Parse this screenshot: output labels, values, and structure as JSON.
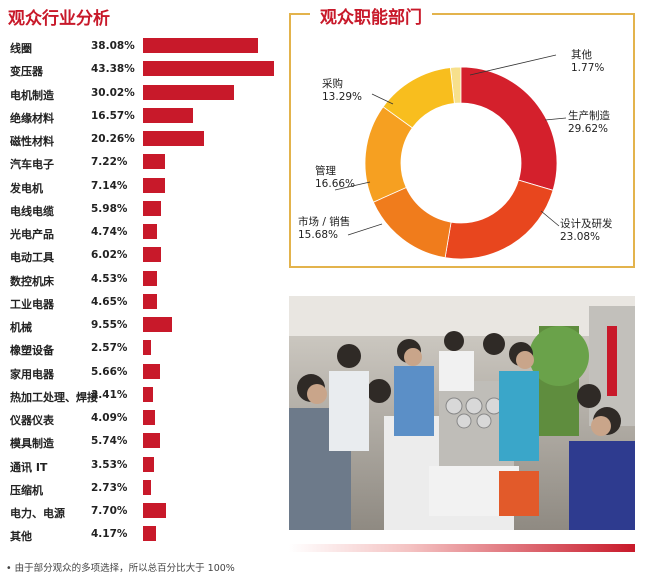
{
  "chart_data": [
    {
      "type": "bar",
      "orientation": "horizontal",
      "title": "观众行业分析",
      "categories": [
        "线圈",
        "变压器",
        "电机制造",
        "绝缘材料",
        "磁性材料",
        "汽车电子",
        "发电机",
        "电线电缆",
        "光电产品",
        "电动工具",
        "数控机床",
        "工业电器",
        "机械",
        "橡塑设备",
        "家用电器",
        "热加工处理、焊接",
        "仪器仪表",
        "模具制造",
        "通讯 IT",
        "压缩机",
        "电力、电源",
        "其他"
      ],
      "values": [
        38.08,
        43.38,
        30.02,
        16.57,
        20.26,
        7.22,
        7.14,
        5.98,
        4.74,
        6.02,
        4.53,
        4.65,
        9.55,
        2.57,
        5.66,
        3.41,
        4.09,
        5.74,
        3.53,
        2.73,
        7.7,
        4.17
      ],
      "value_labels": [
        "38.08%",
        "43.38%",
        "30.02%",
        "16.57%",
        "20.26%",
        "7.22%",
        "7.14%",
        "5.98%",
        "4.74%",
        "6.02%",
        "4.53%",
        "4.65%",
        "9.55%",
        "2.57%",
        "5.66%",
        "3.41%",
        "4.09%",
        "5.74%",
        "3.53%",
        "2.73%",
        "7.70%",
        "4.17%"
      ],
      "color": "#c8192a"
    },
    {
      "type": "pie",
      "style": "donut",
      "title": "观众职能部门",
      "slices": [
        {
          "label": "其他",
          "value": 1.77,
          "value_label": "1.77%",
          "color": "#f7e08c"
        },
        {
          "label": "生产制造",
          "value": 29.62,
          "value_label": "29.62%",
          "color": "#d4202c"
        },
        {
          "label": "设计及研发",
          "value": 23.08,
          "value_label": "23.08%",
          "color": "#e8461e"
        },
        {
          "label": "市场 / 销售",
          "value": 15.68,
          "value_label": "15.68%",
          "color": "#f07c1c"
        },
        {
          "label": "管理",
          "value": 16.66,
          "value_label": "16.66%",
          "color": "#f6a021"
        },
        {
          "label": "采购",
          "value": 13.29,
          "value_label": "13.29%",
          "color": "#f8be1e"
        }
      ]
    }
  ],
  "footnote": "• 由于部分观众的多项选择，所以总百分比大于 100%",
  "photo": {
    "icon": "exhibition-photo"
  }
}
